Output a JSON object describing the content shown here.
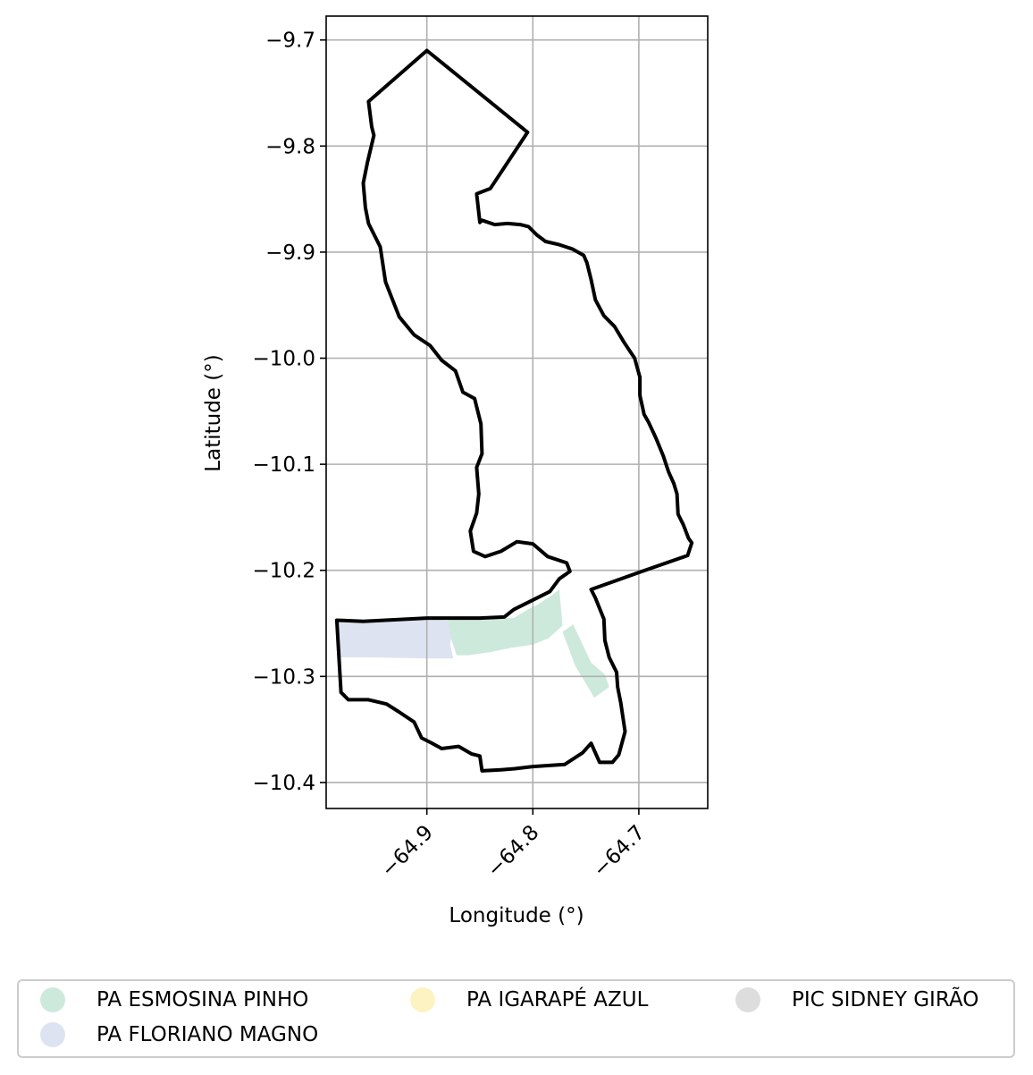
{
  "chart_data": {
    "type": "map",
    "xlabel": "Longitude (°)",
    "ylabel": "Latitude (°)",
    "xlim": [
      -64.995,
      -64.635
    ],
    "ylim": [
      -10.4245,
      -9.6775
    ],
    "xticks": [
      -64.9,
      -64.8,
      -64.7
    ],
    "xtick_labels": [
      "−64.9",
      "−64.8",
      "−64.7"
    ],
    "yticks": [
      -9.7,
      -9.8,
      -9.9,
      -10.0,
      -10.1,
      -10.2,
      -10.3,
      -10.4
    ],
    "ytick_labels": [
      "−9.7",
      "−9.8",
      "−9.9",
      "−10.0",
      "−10.1",
      "−10.2",
      "−10.3",
      "−10.4"
    ],
    "grid": true,
    "legend_position": "bottom",
    "outline_color": "#000000",
    "legend": [
      {
        "label": "PA ESMOSINA PINHO",
        "color": "#cde9dc"
      },
      {
        "label": "PA FLORIANO MAGNO",
        "color": "#dde3f0"
      },
      {
        "label": "PA IGARAPÉ AZUL",
        "color": "#fdf3c2"
      },
      {
        "label": "PIC SIDNEY GIRÃO",
        "color": "#dddddd"
      }
    ],
    "boundary": [
      [
        -64.9,
        -9.71
      ],
      [
        -64.955,
        -9.758
      ],
      [
        -64.952,
        -9.782
      ],
      [
        -64.95,
        -9.79
      ],
      [
        -64.956,
        -9.815
      ],
      [
        -64.96,
        -9.835
      ],
      [
        -64.958,
        -9.858
      ],
      [
        -64.955,
        -9.873
      ],
      [
        -64.944,
        -9.895
      ],
      [
        -64.939,
        -9.928
      ],
      [
        -64.926,
        -9.961
      ],
      [
        -64.912,
        -9.978
      ],
      [
        -64.897,
        -9.988
      ],
      [
        -64.886,
        -10.002
      ],
      [
        -64.873,
        -10.012
      ],
      [
        -64.866,
        -10.032
      ],
      [
        -64.855,
        -10.038
      ],
      [
        -64.849,
        -10.062
      ],
      [
        -64.848,
        -10.09
      ],
      [
        -64.853,
        -10.103
      ],
      [
        -64.851,
        -10.128
      ],
      [
        -64.853,
        -10.146
      ],
      [
        -64.859,
        -10.163
      ],
      [
        -64.856,
        -10.182
      ],
      [
        -64.845,
        -10.187
      ],
      [
        -64.83,
        -10.182
      ],
      [
        -64.815,
        -10.173
      ],
      [
        -64.8,
        -10.175
      ],
      [
        -64.786,
        -10.187
      ],
      [
        -64.768,
        -10.193
      ],
      [
        -64.765,
        -10.201
      ],
      [
        -64.775,
        -10.208
      ],
      [
        -64.784,
        -10.22
      ],
      [
        -64.8,
        -10.228
      ],
      [
        -64.818,
        -10.237
      ],
      [
        -64.827,
        -10.244
      ],
      [
        -64.85,
        -10.245
      ],
      [
        -64.9,
        -10.245
      ],
      [
        -64.96,
        -10.248
      ],
      [
        -64.985,
        -10.247
      ],
      [
        -64.981,
        -10.315
      ],
      [
        -64.974,
        -10.322
      ],
      [
        -64.955,
        -10.322
      ],
      [
        -64.938,
        -10.326
      ],
      [
        -64.927,
        -10.333
      ],
      [
        -64.912,
        -10.343
      ],
      [
        -64.905,
        -10.358
      ],
      [
        -64.895,
        -10.363
      ],
      [
        -64.886,
        -10.368
      ],
      [
        -64.87,
        -10.366
      ],
      [
        -64.858,
        -10.373
      ],
      [
        -64.85,
        -10.375
      ],
      [
        -64.848,
        -10.389
      ],
      [
        -64.83,
        -10.388
      ],
      [
        -64.817,
        -10.387
      ],
      [
        -64.8,
        -10.385
      ],
      [
        -64.77,
        -10.383
      ],
      [
        -64.753,
        -10.372
      ],
      [
        -64.745,
        -10.363
      ],
      [
        -64.737,
        -10.381
      ],
      [
        -64.725,
        -10.381
      ],
      [
        -64.719,
        -10.374
      ],
      [
        -64.713,
        -10.352
      ],
      [
        -64.717,
        -10.325
      ],
      [
        -64.72,
        -10.31
      ],
      [
        -64.721,
        -10.296
      ],
      [
        -64.728,
        -10.282
      ],
      [
        -64.732,
        -10.266
      ],
      [
        -64.733,
        -10.246
      ],
      [
        -64.741,
        -10.226
      ],
      [
        -64.745,
        -10.218
      ],
      [
        -64.7,
        -10.202
      ],
      [
        -64.654,
        -10.186
      ],
      [
        -64.65,
        -10.174
      ],
      [
        -64.653,
        -10.17
      ],
      [
        -64.658,
        -10.157
      ],
      [
        -64.663,
        -10.147
      ],
      [
        -64.664,
        -10.128
      ],
      [
        -64.667,
        -10.118
      ],
      [
        -64.672,
        -10.107
      ],
      [
        -64.677,
        -10.092
      ],
      [
        -64.684,
        -10.075
      ],
      [
        -64.691,
        -10.06
      ],
      [
        -64.695,
        -10.053
      ],
      [
        -64.699,
        -10.035
      ],
      [
        -64.699,
        -10.018
      ],
      [
        -64.704,
        -10.0
      ],
      [
        -64.714,
        -9.985
      ],
      [
        -64.723,
        -9.97
      ],
      [
        -64.733,
        -9.96
      ],
      [
        -64.741,
        -9.945
      ],
      [
        -64.745,
        -9.926
      ],
      [
        -64.749,
        -9.91
      ],
      [
        -64.752,
        -9.903
      ],
      [
        -64.763,
        -9.897
      ],
      [
        -64.775,
        -9.893
      ],
      [
        -64.788,
        -9.89
      ],
      [
        -64.796,
        -9.884
      ],
      [
        -64.804,
        -9.876
      ],
      [
        -64.812,
        -9.874
      ],
      [
        -64.824,
        -9.873
      ],
      [
        -64.836,
        -9.874
      ],
      [
        -64.848,
        -9.87
      ],
      [
        -64.85,
        -9.872
      ],
      [
        -64.853,
        -9.845
      ],
      [
        -64.84,
        -9.84
      ],
      [
        -64.805,
        -9.787
      ],
      [
        -64.9,
        -9.71
      ]
    ],
    "regions": [
      {
        "name": "PA FLORIANO MAGNO",
        "color": "#dde3f0",
        "polygon": [
          [
            -64.985,
            -10.248
          ],
          [
            -64.9,
            -10.246
          ],
          [
            -64.88,
            -10.247
          ],
          [
            -64.875,
            -10.253
          ],
          [
            -64.878,
            -10.27
          ],
          [
            -64.875,
            -10.283
          ],
          [
            -64.9,
            -10.283
          ],
          [
            -64.955,
            -10.282
          ],
          [
            -64.983,
            -10.282
          ]
        ]
      },
      {
        "name": "PA ESMOSINA PINHO",
        "color": "#cde9dc",
        "polygon": [
          [
            -64.88,
            -10.246
          ],
          [
            -64.818,
            -10.245
          ],
          [
            -64.805,
            -10.237
          ],
          [
            -64.795,
            -10.232
          ],
          [
            -64.783,
            -10.224
          ],
          [
            -64.775,
            -10.218
          ],
          [
            -64.772,
            -10.252
          ],
          [
            -64.785,
            -10.264
          ],
          [
            -64.8,
            -10.27
          ],
          [
            -64.82,
            -10.273
          ],
          [
            -64.84,
            -10.277
          ],
          [
            -64.86,
            -10.28
          ],
          [
            -64.872,
            -10.28
          ],
          [
            -64.877,
            -10.265
          ]
        ]
      },
      {
        "name": "PA ESMOSINA PINHO",
        "color": "#cde9dc",
        "polygon": [
          [
            -64.772,
            -10.258
          ],
          [
            -64.762,
            -10.251
          ],
          [
            -64.745,
            -10.287
          ],
          [
            -64.732,
            -10.298
          ],
          [
            -64.728,
            -10.31
          ],
          [
            -64.742,
            -10.32
          ],
          [
            -64.76,
            -10.29
          ]
        ]
      }
    ]
  }
}
